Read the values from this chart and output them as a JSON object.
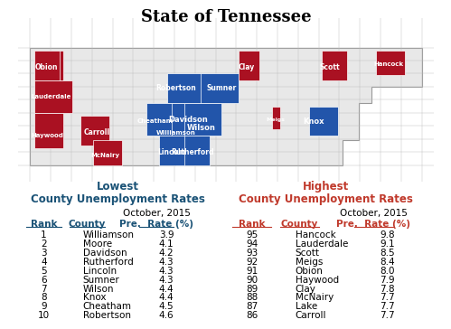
{
  "title": "State of Tennessee",
  "title_fontsize": 13,
  "title_bold": true,
  "low_header1": "Lowest",
  "low_header2": "County Unemployment Rates",
  "high_header1": "Highest",
  "high_header2": "County Unemployment Rates",
  "col_header_date": "October, 2015",
  "low_color": "#1a5276",
  "high_color": "#c0392b",
  "low_ranks": [
    1,
    2,
    3,
    4,
    5,
    6,
    7,
    8,
    9,
    10
  ],
  "low_counties": [
    "Williamson",
    "Moore",
    "Davidson",
    "Rutherford",
    "Lincoln",
    "Sumner",
    "Wilson",
    "Knox",
    "Cheatham",
    "Robertson"
  ],
  "low_rates": [
    3.9,
    4.1,
    4.2,
    4.3,
    4.3,
    4.3,
    4.4,
    4.4,
    4.5,
    4.6
  ],
  "high_ranks": [
    95,
    94,
    93,
    92,
    91,
    90,
    89,
    88,
    87,
    86
  ],
  "high_counties": [
    "Hancock",
    "Lauderdale",
    "Scott",
    "Meigs",
    "Obion",
    "Haywood",
    "Clay",
    "McNairy",
    "Lake",
    "Carroll"
  ],
  "high_rates": [
    9.8,
    9.1,
    8.5,
    8.4,
    8.0,
    7.9,
    7.8,
    7.7,
    7.7,
    7.7
  ],
  "bg_color": "#ffffff",
  "row_fontsize": 7.5,
  "header_fontsize": 7.5,
  "section_header_fontsize": 8.5
}
